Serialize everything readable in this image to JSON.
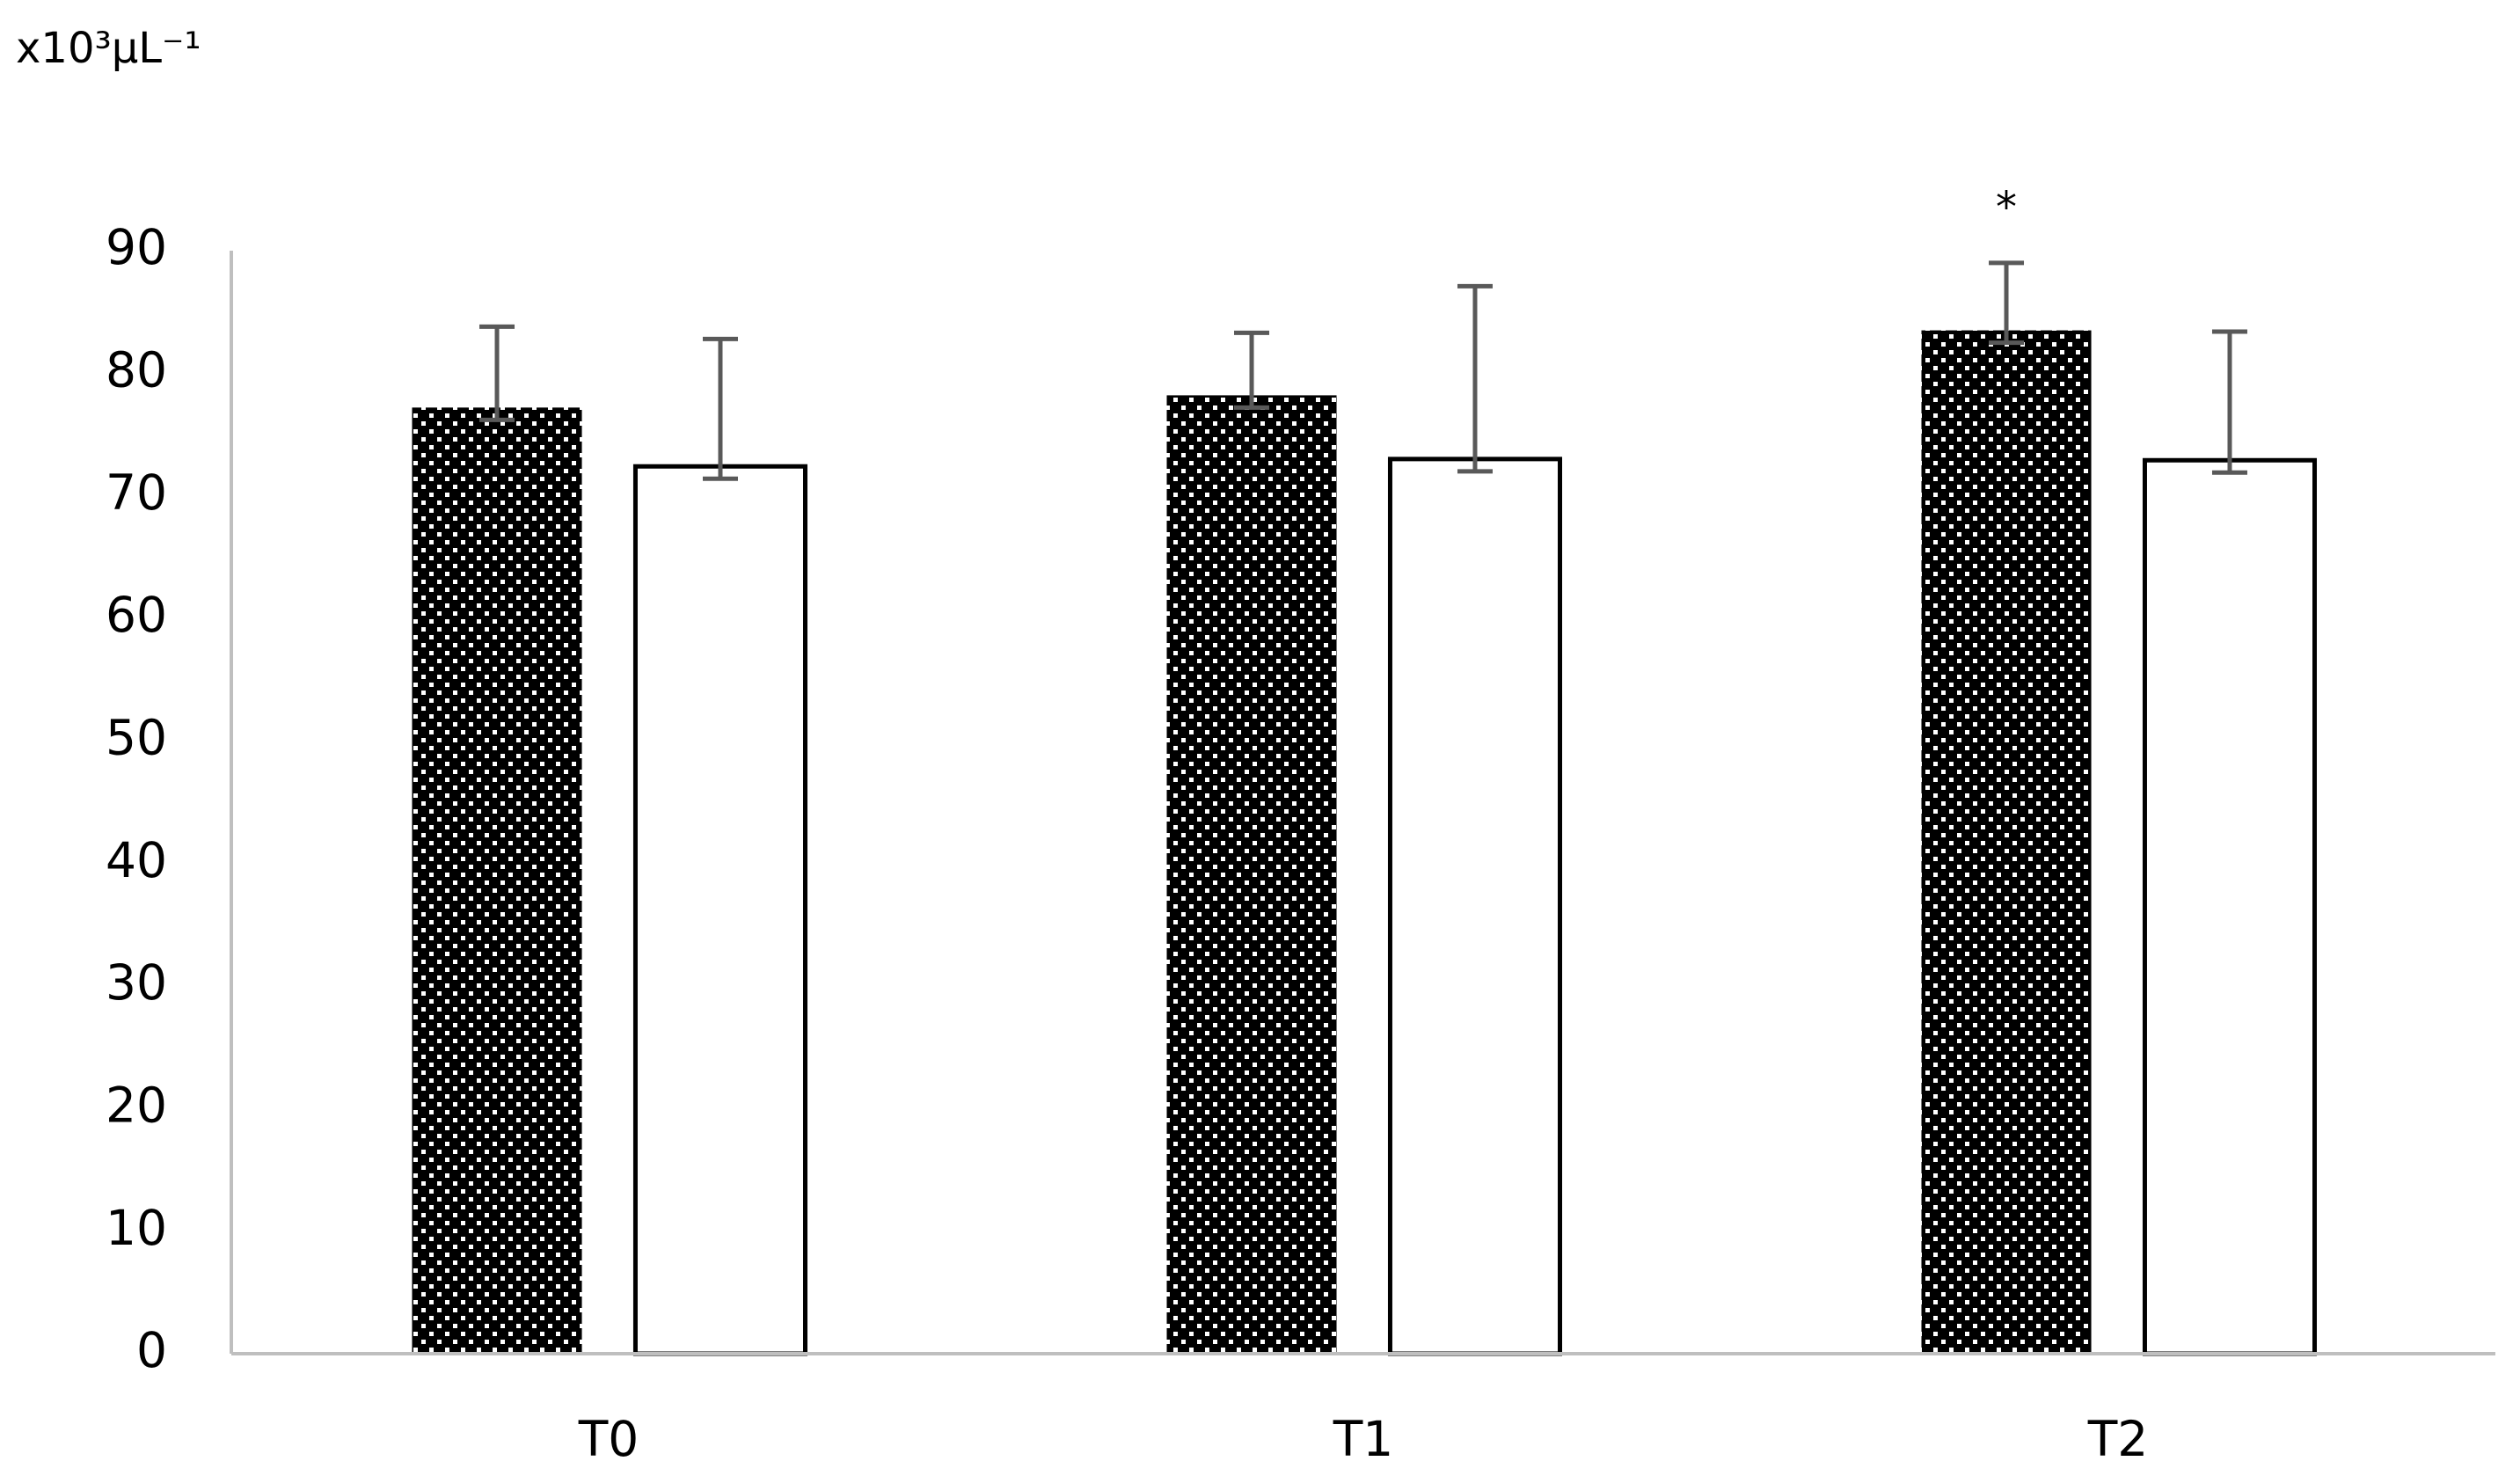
{
  "chart_data": {
    "type": "bar",
    "y_label": "x10³µL⁻¹",
    "categories": [
      "T0",
      "T1",
      "T2"
    ],
    "series": [
      {
        "color": "#000000",
        "pattern": "dots",
        "values": [
          77.2,
          78.2,
          83.5
        ],
        "errors": [
          6.6,
          5.1,
          5.5
        ]
      },
      {
        "color": "#ffffff",
        "values": [
          72.4,
          73.0,
          72.9
        ],
        "errors": [
          10.4,
          14.1,
          10.5
        ]
      }
    ],
    "annotations": [
      {
        "text": "*",
        "category": 2,
        "series": 0
      }
    ],
    "ylim": [
      0,
      90
    ],
    "yticks": [
      0,
      10,
      20,
      30,
      40,
      50,
      60,
      70,
      80,
      90
    ],
    "grid": false
  }
}
